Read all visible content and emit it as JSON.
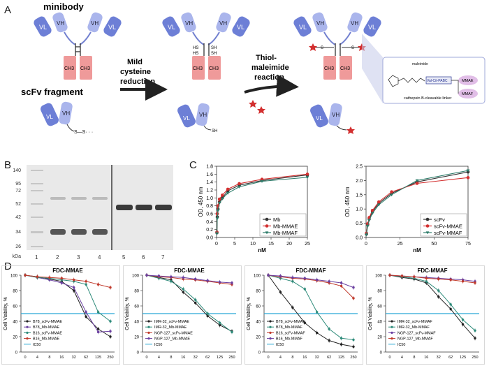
{
  "panels": {
    "A": "A",
    "B": "B",
    "C": "C",
    "D": "D"
  },
  "panel_a": {
    "minibody_label": "minibody",
    "scfv_label": "scFv fragment",
    "step1": [
      "Mild",
      "cysteine",
      "reduction"
    ],
    "step2": [
      "Thiol-",
      "maleimide",
      "reaction"
    ],
    "chain_vl": "VL",
    "chain_vh": "VH",
    "chain_ch3": "CH3",
    "sh": "SH",
    "hs": "HS",
    "s": "S",
    "inset": {
      "maleimide": "maleimide",
      "linker": "Val-Cit-PABC",
      "mmae": "MMAE",
      "mmaf": "MMAF",
      "caption": "cathepsin B-cleavable linker"
    },
    "colors": {
      "variable": "#6d7fd6",
      "variable_light": "#aab5ec",
      "constant": "#ef9a9a",
      "payload": "#d32f2f",
      "linker": "#283593"
    }
  },
  "panel_b": {
    "ladder_values": [
      "140",
      "95",
      "72",
      "52",
      "42",
      "34",
      "26"
    ],
    "unit": "kDa",
    "lanes": [
      "1",
      "2",
      "3",
      "4",
      "5",
      "6",
      "7"
    ]
  },
  "chart_data": [
    {
      "type": "line",
      "xlabel": "nM",
      "ylabel": "OD, 450 nm",
      "xlim": [
        0,
        25
      ],
      "ylim": [
        0,
        1.8
      ],
      "xticks": [
        0,
        5,
        10,
        15,
        20,
        25
      ],
      "yticks": [
        0,
        0.2,
        0.4,
        0.6,
        0.8,
        1.0,
        1.2,
        1.4,
        1.6,
        1.8
      ],
      "legend_position": "bottom-right",
      "x": [
        0.1,
        0.2,
        0.4,
        0.8,
        1.6,
        3.1,
        6.25,
        12.5,
        25
      ],
      "series": [
        {
          "name": "Mb",
          "color": "#333333",
          "values": [
            0.12,
            0.52,
            0.72,
            0.9,
            1.0,
            1.18,
            1.32,
            1.44,
            1.58
          ]
        },
        {
          "name": "Mb-MMAE",
          "color": "#d32f2f",
          "values": [
            0.14,
            0.6,
            0.8,
            0.97,
            1.07,
            1.22,
            1.36,
            1.47,
            1.6
          ]
        },
        {
          "name": "Mb-MMAF",
          "color": "#2e7d6b",
          "values": [
            0.1,
            0.48,
            0.68,
            0.87,
            0.98,
            1.12,
            1.28,
            1.42,
            1.52
          ]
        }
      ]
    },
    {
      "type": "line",
      "xlabel": "nM",
      "ylabel": "OD, 450 nm",
      "xlim": [
        0,
        75
      ],
      "ylim": [
        0,
        2.5
      ],
      "xticks": [
        0,
        25,
        50,
        75
      ],
      "yticks": [
        0,
        0.5,
        1.0,
        1.5,
        2.0,
        2.5
      ],
      "legend_position": "bottom-right",
      "x": [
        0.3,
        1.2,
        2.3,
        4.7,
        9.4,
        18.8,
        37.5,
        75
      ],
      "series": [
        {
          "name": "scFv",
          "color": "#333333",
          "values": [
            0.12,
            0.45,
            0.65,
            0.9,
            1.2,
            1.55,
            1.95,
            2.3
          ]
        },
        {
          "name": "scFv-MMAE",
          "color": "#d32f2f",
          "values": [
            0.15,
            0.48,
            0.7,
            0.95,
            1.25,
            1.6,
            1.9,
            2.1
          ]
        },
        {
          "name": "scFv-MMAF",
          "color": "#2e7d6b",
          "values": [
            0.1,
            0.4,
            0.6,
            0.85,
            1.15,
            1.5,
            2.0,
            2.35
          ]
        }
      ]
    },
    {
      "type": "line",
      "title": "FDC-MMAE",
      "ylabel": "Cell Viability, %",
      "ylim": [
        0,
        100
      ],
      "yticks": [
        0,
        20,
        40,
        60,
        80,
        100
      ],
      "categories": [
        "0",
        "4",
        "8",
        "16",
        "32",
        "62",
        "125",
        "250"
      ],
      "ic50": 50,
      "series": [
        {
          "name": "B78_scFv-MMAE",
          "color": "#222222",
          "values": [
            100,
            98,
            95,
            92,
            80,
            46,
            30,
            20
          ]
        },
        {
          "name": "B78_Mb-MMAE",
          "color": "#6a3fa0",
          "values": [
            100,
            97,
            94,
            90,
            84,
            52,
            26,
            27
          ]
        },
        {
          "name": "B16_scFv-MMAE",
          "color": "#2e8b7a",
          "values": [
            100,
            97,
            96,
            94,
            92,
            88,
            52,
            40
          ]
        },
        {
          "name": "B16_Mb-MMAE",
          "color": "#c0392b",
          "values": [
            100,
            98,
            97,
            96,
            94,
            92,
            88,
            84
          ]
        },
        {
          "name": "IC50",
          "color": "#29a8d6"
        }
      ]
    },
    {
      "type": "line",
      "title": "FDC-MMAE",
      "ylabel": "Cell Viability, %",
      "ylim": [
        0,
        100
      ],
      "yticks": [
        0,
        20,
        40,
        60,
        80,
        100
      ],
      "categories": [
        "0",
        "4",
        "8",
        "16",
        "32",
        "62",
        "125",
        "250"
      ],
      "ic50": 50,
      "series": [
        {
          "name": "IMR-32_scFv-MMAE",
          "color": "#222222",
          "values": [
            100,
            97,
            94,
            78,
            64,
            47,
            35,
            27
          ]
        },
        {
          "name": "IMR-32_Mb-MMAE",
          "color": "#2e8b7a",
          "values": [
            100,
            96,
            92,
            82,
            68,
            50,
            38,
            26
          ]
        },
        {
          "name": "NGP-127_scFv-MMAE",
          "color": "#c0392b",
          "values": [
            100,
            98,
            97,
            95,
            94,
            92,
            90,
            88
          ]
        },
        {
          "name": "NGP-127_Mb-MMAE",
          "color": "#6a3fa0",
          "values": [
            100,
            99,
            98,
            97,
            95,
            93,
            91,
            90
          ]
        },
        {
          "name": "IC50",
          "color": "#29a8d6"
        }
      ]
    },
    {
      "type": "line",
      "title": "FDC-MMAF",
      "ylabel": "Cell Viability, %",
      "ylim": [
        0,
        100
      ],
      "yticks": [
        0,
        20,
        40,
        60,
        80,
        100
      ],
      "categories": [
        "0",
        "4",
        "8",
        "16",
        "32",
        "62",
        "125",
        "250"
      ],
      "ic50": 50,
      "series": [
        {
          "name": "B78_scFv-MMAF",
          "color": "#222222",
          "values": [
            100,
            78,
            58,
            38,
            25,
            15,
            10,
            7
          ]
        },
        {
          "name": "B78_Mb-MMAF",
          "color": "#2e8b7a",
          "values": [
            100,
            96,
            92,
            82,
            52,
            30,
            18,
            16
          ]
        },
        {
          "name": "B16_scFv-MMAF",
          "color": "#c0392b",
          "values": [
            100,
            98,
            96,
            95,
            93,
            90,
            86,
            70
          ]
        },
        {
          "name": "B16_Mb-MMAF",
          "color": "#6a3fa0",
          "values": [
            100,
            99,
            97,
            96,
            94,
            92,
            90,
            84
          ]
        },
        {
          "name": "IC50",
          "color": "#29a8d6"
        }
      ]
    },
    {
      "type": "line",
      "title": "FDC-MMAF",
      "ylabel": "Cell Viability, %",
      "ylim": [
        0,
        100
      ],
      "yticks": [
        0,
        20,
        40,
        60,
        80,
        100
      ],
      "categories": [
        "0",
        "4",
        "8",
        "16",
        "32",
        "62",
        "125",
        "250"
      ],
      "ic50": 50,
      "series": [
        {
          "name": "IMR-32_scFv-MMAF",
          "color": "#222222",
          "values": [
            100,
            97,
            95,
            90,
            72,
            56,
            36,
            18
          ]
        },
        {
          "name": "IMR-32_Mb-MMAF",
          "color": "#2e8b7a",
          "values": [
            100,
            98,
            96,
            92,
            80,
            62,
            42,
            28
          ]
        },
        {
          "name": "NGP-127_scFv-MMAF",
          "color": "#6a3fa0",
          "values": [
            100,
            99,
            98,
            97,
            96,
            95,
            94,
            92
          ]
        },
        {
          "name": "NGP-127_Mb-MMAF",
          "color": "#c0392b",
          "values": [
            100,
            99,
            98,
            96,
            95,
            94,
            92,
            90
          ]
        },
        {
          "name": "IC50",
          "color": "#29a8d6"
        }
      ]
    }
  ]
}
